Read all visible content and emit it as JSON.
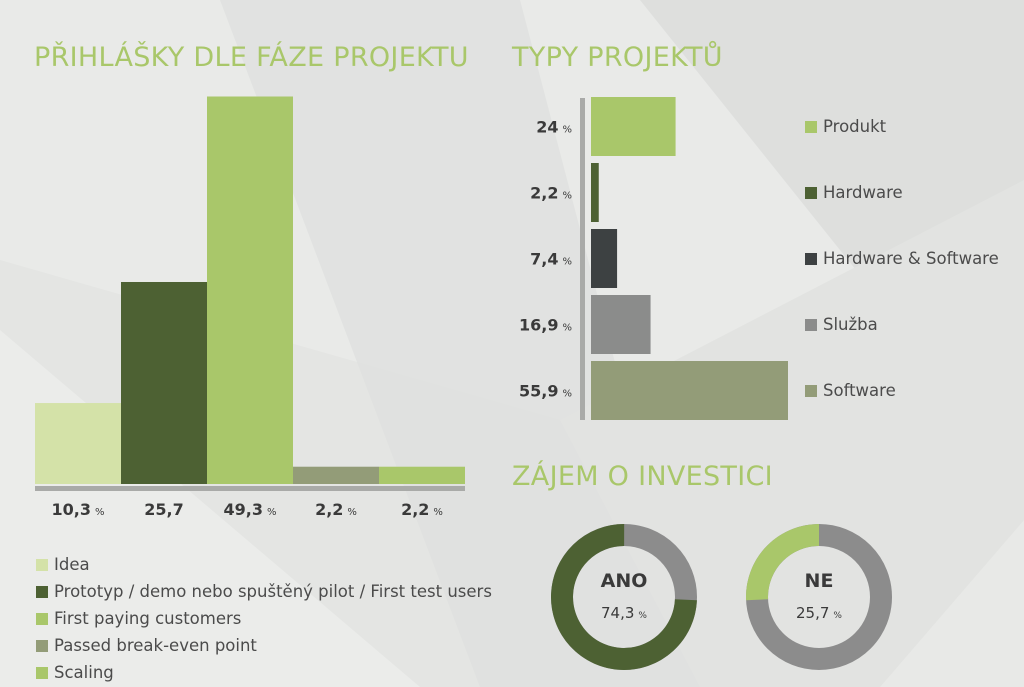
{
  "headings": {
    "phase": "PŘIHLÁŠKY DLE FÁZE PROJEKTU",
    "types": "TYPY PROJEKTŮ",
    "invest": "ZÁJEM O INVESTICI"
  },
  "colors": {
    "light_green": "#d4e2a8",
    "dark_green": "#4d6133",
    "bright_green": "#a9c76a",
    "olive_grey": "#939c78",
    "charcoal": "#3d4142",
    "grey": "#8b8c8b",
    "ring_grey": "#8c8c8c",
    "heading": "#a9c76a"
  },
  "chart_data": [
    {
      "type": "bar",
      "title": "PŘIHLÁŠKY DLE FÁZE PROJEKTU",
      "orientation": "vertical",
      "categories": [
        "Idea",
        "Prototyp / demo nebo spuštěný pilot / First test users",
        "First paying customers",
        "Passed break-even point",
        "Scaling"
      ],
      "values": [
        10.3,
        25.7,
        49.3,
        2.2,
        2.2
      ],
      "value_labels": [
        "10,3",
        "25,7",
        "49,3",
        "2,2",
        "2,2"
      ],
      "value_units": [
        "%",
        "",
        "%",
        "%",
        "%"
      ],
      "colors": [
        "#d4e2a8",
        "#4d6133",
        "#a9c76a",
        "#939c78",
        "#a9c76a"
      ],
      "ylim": [
        0,
        50
      ],
      "grid": false,
      "legend_position": "bottom-left"
    },
    {
      "type": "bar",
      "title": "TYPY PROJEKTŮ",
      "orientation": "horizontal",
      "categories": [
        "Produkt",
        "Hardware",
        "Hardware & Software",
        "Služba",
        "Software"
      ],
      "values": [
        24,
        2.2,
        7.4,
        16.9,
        55.9
      ],
      "value_labels": [
        "24",
        "2,2",
        "7,4",
        "16,9",
        "55,9"
      ],
      "unit": "%",
      "colors": [
        "#a9c76a",
        "#4d6133",
        "#3d4142",
        "#8b8c8b",
        "#939c78"
      ],
      "xlim": [
        0,
        55.9
      ],
      "grid": false,
      "legend_position": "right"
    },
    {
      "type": "pie",
      "style": "donut",
      "title": "ZÁJEM O INVESTICI",
      "donuts": [
        {
          "label": "ANO",
          "value": 74.3,
          "value_label": "74,3",
          "unit": "%",
          "color": "#4d6133",
          "rest_color": "#8c8c8c"
        },
        {
          "label": "NE",
          "value": 25.7,
          "value_label": "25,7",
          "unit": "%",
          "color": "#a9c76a",
          "rest_color": "#8c8c8c"
        }
      ]
    }
  ]
}
